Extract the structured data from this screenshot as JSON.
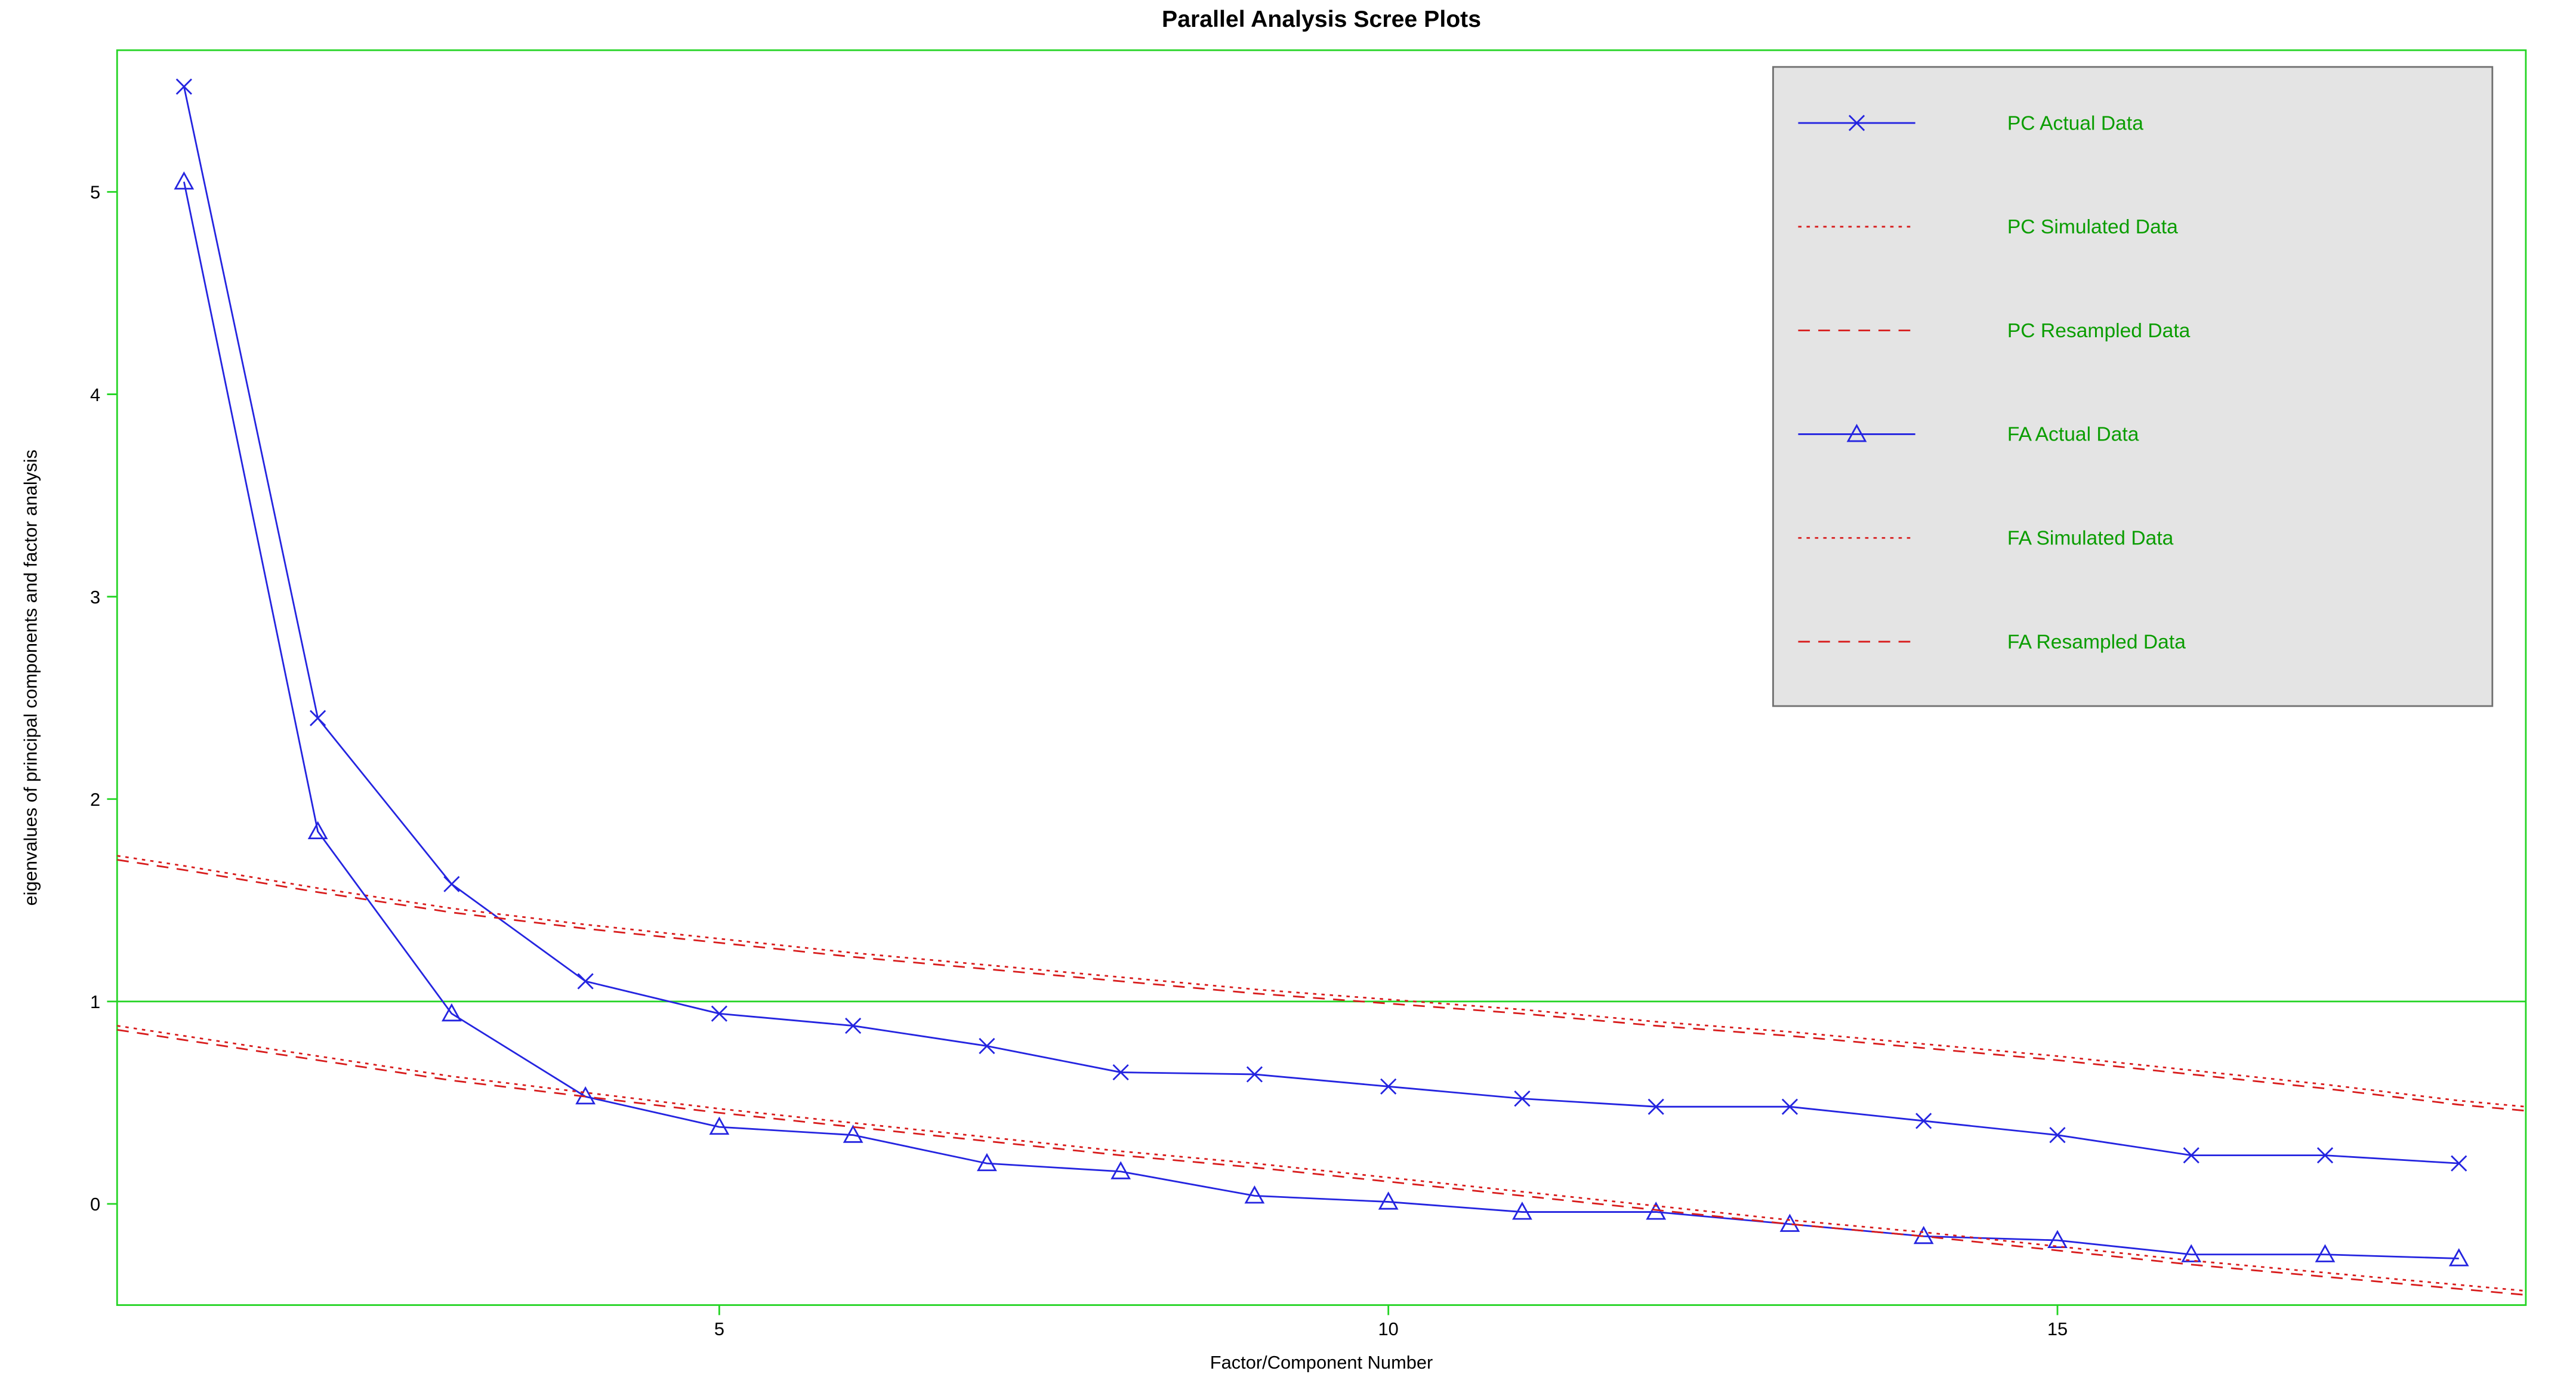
{
  "title": "Parallel Analysis Scree Plots",
  "title_fontsize": 14,
  "title_fontweight": "bold",
  "xlabel": "Factor/Component Number",
  "ylabel": "eigenvalues of principal components and factor analysis",
  "label_fontsize": 11,
  "background_color": "#ffffff",
  "plot_border_color": "#24d424",
  "axis_tick_color": "#24d424",
  "reference_line_y": 1.0,
  "reference_line_color": "#24d424",
  "xlim": [
    0.5,
    18.5
  ],
  "ylim": [
    -0.5,
    5.7
  ],
  "xticks": [
    5,
    10,
    15
  ],
  "yticks": [
    0,
    1,
    2,
    3,
    4,
    5
  ],
  "tick_label_color": "#000000",
  "tick_label_fontsize": 11,
  "series": [
    {
      "name": "PC  Actual Data",
      "type": "line_marker",
      "color": "#2424e0",
      "marker": "x",
      "line_width": 1,
      "x": [
        1,
        2,
        3,
        4,
        5,
        6,
        7,
        8,
        9,
        10,
        11,
        12,
        13,
        14,
        15,
        16,
        17,
        18
      ],
      "y": [
        5.52,
        2.4,
        1.58,
        1.1,
        0.94,
        0.88,
        0.78,
        0.65,
        0.64,
        0.58,
        0.52,
        0.48,
        0.48,
        0.41,
        0.34,
        0.24,
        0.24,
        0.2
      ]
    },
    {
      "name": "PC  Simulated Data",
      "type": "dotted",
      "color": "#d81c1c",
      "line_width": 1,
      "dash": "2,3",
      "x": [
        0.5,
        1,
        2,
        3,
        4,
        5,
        6,
        7,
        8,
        9,
        10,
        11,
        12,
        13,
        14,
        15,
        16,
        17,
        18,
        18.5
      ],
      "y": [
        1.72,
        1.67,
        1.56,
        1.46,
        1.38,
        1.31,
        1.24,
        1.18,
        1.12,
        1.06,
        1.01,
        0.96,
        0.9,
        0.85,
        0.79,
        0.73,
        0.66,
        0.59,
        0.51,
        0.48
      ]
    },
    {
      "name": "PC  Resampled Data",
      "type": "dashed",
      "color": "#d81c1c",
      "line_width": 1,
      "dash": "7,5",
      "x": [
        0.5,
        1,
        2,
        3,
        4,
        5,
        6,
        7,
        8,
        9,
        10,
        11,
        12,
        13,
        14,
        15,
        16,
        17,
        18,
        18.5
      ],
      "y": [
        1.7,
        1.65,
        1.54,
        1.44,
        1.36,
        1.29,
        1.22,
        1.16,
        1.1,
        1.04,
        0.99,
        0.94,
        0.88,
        0.83,
        0.77,
        0.71,
        0.64,
        0.57,
        0.49,
        0.46
      ]
    },
    {
      "name": "FA  Actual Data",
      "type": "line_marker",
      "color": "#2424e0",
      "marker": "triangle",
      "line_width": 1,
      "x": [
        1,
        2,
        3,
        4,
        5,
        6,
        7,
        8,
        9,
        10,
        11,
        12,
        13,
        14,
        15,
        16,
        17,
        18
      ],
      "y": [
        5.05,
        1.84,
        0.94,
        0.53,
        0.38,
        0.34,
        0.2,
        0.16,
        0.04,
        0.01,
        -0.04,
        -0.04,
        -0.1,
        -0.16,
        -0.18,
        -0.25,
        -0.25,
        -0.27
      ]
    },
    {
      "name": "FA  Simulated Data",
      "type": "dotted",
      "color": "#d81c1c",
      "line_width": 1,
      "dash": "2,3",
      "x": [
        0.5,
        1,
        2,
        3,
        4,
        5,
        6,
        7,
        8,
        9,
        10,
        11,
        12,
        13,
        14,
        15,
        16,
        17,
        18,
        18.5
      ],
      "y": [
        0.88,
        0.83,
        0.73,
        0.63,
        0.55,
        0.47,
        0.4,
        0.33,
        0.26,
        0.2,
        0.13,
        0.06,
        -0.01,
        -0.08,
        -0.14,
        -0.21,
        -0.28,
        -0.34,
        -0.4,
        -0.43
      ]
    },
    {
      "name": "FA  Resampled Data",
      "type": "dashed",
      "color": "#d81c1c",
      "line_width": 1,
      "dash": "7,5",
      "x": [
        0.5,
        1,
        2,
        3,
        4,
        5,
        6,
        7,
        8,
        9,
        10,
        11,
        12,
        13,
        14,
        15,
        16,
        17,
        18,
        18.5
      ],
      "y": [
        0.86,
        0.81,
        0.71,
        0.61,
        0.53,
        0.45,
        0.38,
        0.31,
        0.24,
        0.18,
        0.11,
        0.04,
        -0.03,
        -0.1,
        -0.16,
        -0.23,
        -0.3,
        -0.36,
        -0.42,
        -0.45
      ]
    }
  ],
  "legend": {
    "background_color": "#e4e4e4",
    "border_color": "#707070",
    "text_color": "#0a9d00",
    "fontsize": 12
  }
}
